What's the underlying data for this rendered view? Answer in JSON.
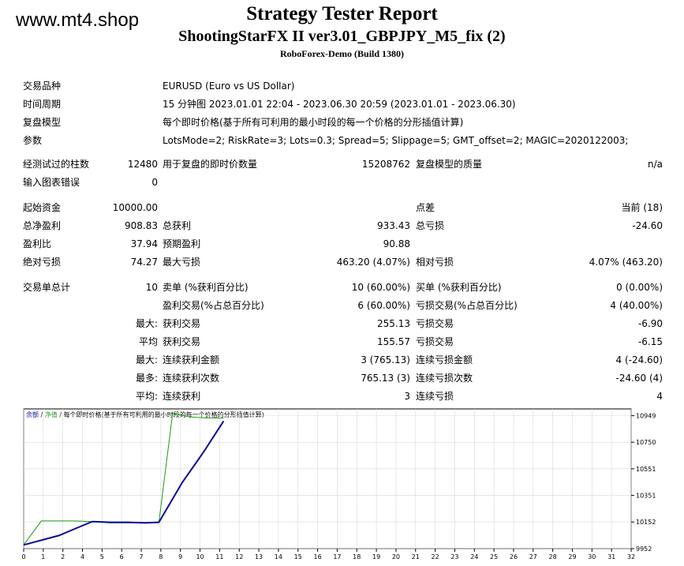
{
  "watermark": "www.mt4.shop",
  "header": {
    "title": "Strategy Tester Report",
    "subtitle": "ShootingStarFX II ver3.01_GBPJPY_M5_fix (2)",
    "server": "RoboForex-Demo (Build 1380)"
  },
  "info": [
    {
      "label": "交易品种",
      "value": "EURUSD (Euro vs US Dollar)"
    },
    {
      "label": "时间周期",
      "value": "15 分钟图 2023.01.01 22:04 - 2023.06.30 20:59 (2023.01.01 - 2023.06.30)"
    },
    {
      "label": "复盘模型",
      "value": "每个即时价格(基于所有可利用的最小时段的每一个价格的分形插值计算)"
    },
    {
      "label": "参数",
      "value": "LotsMode=2; RiskRate=3; Lots=0.3; Spread=5; Slippage=5; GMT_offset=2; MAGIC=2020122003;"
    }
  ],
  "bars": {
    "label": "经测试过的柱数",
    "value": "12480",
    "ticks_label": "用于复盘的即时价数量",
    "ticks_value": "15208762",
    "quality_label": "复盘模型的质量",
    "quality_value": "n/a",
    "errors_label": "输入图表错误",
    "errors_value": "0"
  },
  "stats": {
    "deposit_label": "起始资金",
    "deposit_value": "10000.00",
    "spread_label": "点差",
    "spread_value": "当前 (18)",
    "net_label": "总净盈利",
    "net_value": "908.83",
    "gross_profit_label": "总获利",
    "gross_profit_value": "933.43",
    "gross_loss_label": "总亏损",
    "gross_loss_value": "-24.60",
    "pf_label": "盈利比",
    "pf_value": "37.94",
    "payoff_label": "预期盈利",
    "payoff_value": "90.88",
    "abs_dd_label": "绝对亏损",
    "abs_dd_value": "74.27",
    "max_dd_label": "最大亏损",
    "max_dd_value": "463.20 (4.07%)",
    "rel_dd_label": "相对亏损",
    "rel_dd_value": "4.07% (463.20)"
  },
  "trades": {
    "total_label": "交易单总计",
    "total_value": "10",
    "short_label": "卖单 (%获利百分比)",
    "short_value": "10 (60.00%)",
    "long_label": "买单 (%获利百分比)",
    "long_value": "0 (0.00%)",
    "win_label": "盈利交易(%占总百分比)",
    "win_value": "6 (60.00%)",
    "loss_label": "亏损交易(%占总百分比)",
    "loss_value": "4 (40.00%)",
    "largest_prefix": "最大:",
    "largest_win_label": "获利交易",
    "largest_win_value": "255.13",
    "largest_loss_label": "亏损交易",
    "largest_loss_value": "-6.90",
    "avg_prefix": "平均",
    "avg_win_label": "获利交易",
    "avg_win_value": "155.57",
    "avg_loss_label": "亏损交易",
    "avg_loss_value": "-6.15",
    "max_prefix": "最大:",
    "consec_wins_label": "连续获利金额",
    "consec_wins_value": "3 (765.13)",
    "consec_losses_label": "连续亏损金额",
    "consec_losses_value": "4 (-24.60)",
    "maximal_prefix": "最多:",
    "consec_profit_label": "连续获利次数",
    "consec_profit_value": "765.13 (3)",
    "consec_loss_label": "连续亏损次数",
    "consec_loss_value": "-24.60 (4)",
    "avg2_prefix": "平均:",
    "avg_consec_wins_label": "连续获利",
    "avg_consec_wins_value": "3",
    "avg_consec_losses_label": "连续亏损",
    "avg_consec_losses_value": "4"
  },
  "chart_data": {
    "type": "line",
    "legend": {
      "balance": "余额",
      "sep1": " / ",
      "equity": "净值",
      "sep2": " / ",
      "model": "每个即时价格(基于所有可利用的最小时段的每一个价格的分形插值计算)"
    },
    "x_ticks": [
      "0",
      "1",
      "2",
      "4",
      "5",
      "6",
      "7",
      "8",
      "9",
      "10",
      "11",
      "12",
      "13",
      "14",
      "15",
      "16",
      "17",
      "18",
      "19",
      "20",
      "21",
      "22",
      "23",
      "24",
      "25",
      "26",
      "27",
      "28",
      "29",
      "30",
      "31",
      "32"
    ],
    "y_ticks": [
      10949,
      10750,
      10551,
      10351,
      10152,
      9952
    ],
    "ylim": [
      9952,
      11000
    ],
    "colors": {
      "balance": "#0a0a96",
      "equity": "#1a9c1a"
    },
    "series": [
      {
        "name": "余额",
        "x": [
          0,
          1.8,
          2.6,
          3.5,
          4.4,
          5.3,
          6.2,
          6.9,
          8.1,
          9.2,
          10.2
        ],
        "y": [
          9980,
          10050,
          10100,
          10155,
          10150,
          10150,
          10145,
          10150,
          10450,
          10680,
          10908.83
        ]
      },
      {
        "name": "净值",
        "x": [
          0,
          0.9,
          2.6,
          3.5,
          4.4,
          5.3,
          6.2,
          6.9,
          7.6,
          8.5,
          9.3,
          10.2
        ],
        "y": [
          9980,
          10160,
          10160,
          10155,
          10145,
          10145,
          10148,
          10150,
          10965,
          10940,
          10932,
          10930
        ]
      }
    ]
  }
}
